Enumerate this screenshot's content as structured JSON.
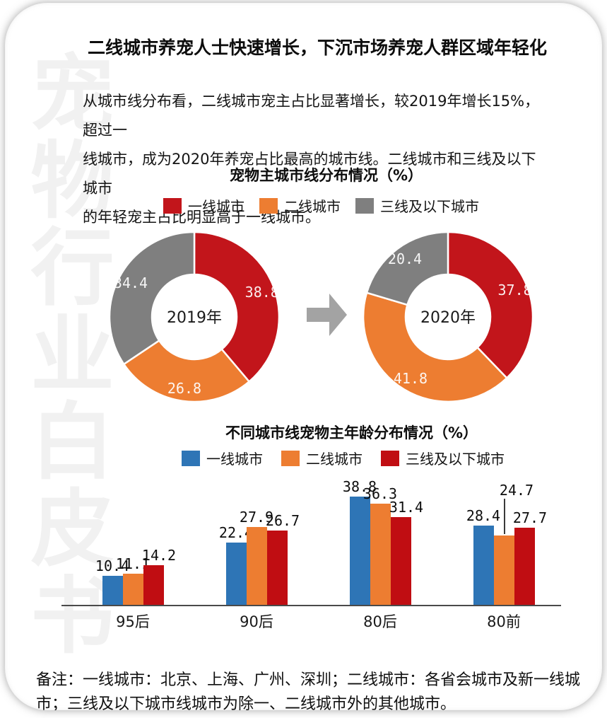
{
  "watermark": "宠物行业白皮书",
  "title": "二线城市养宠人士快速增长，下沉市场养宠人群区域年轻化",
  "paragraph": {
    "lines": [
      "从城市线分布看，二线城市宠主占比显著增长，较2019年增长15%，超过一",
      "线城市，成为2020年养宠占比最高的城市线。二线城市和三线及以下城市",
      "的年轻宠主占比明显高于一线城市。"
    ]
  },
  "colors": {
    "arrow": "#a3a3a3",
    "watermark": "#f1f1f1",
    "axis": "#4a4a4a",
    "slice_label": "#ffffff"
  },
  "chart_data": [
    {
      "type": "pie",
      "title": "宠物主城市线分布情况（%）",
      "legend": [
        {
          "label": "一线城市",
          "color": "#c2151b"
        },
        {
          "label": "二线城市",
          "color": "#ed7d31"
        },
        {
          "label": "三线及以下城市",
          "color": "#7f7f7f"
        }
      ],
      "donuts": [
        {
          "center_label": "2019年",
          "values": [
            38.8,
            26.8,
            34.4
          ]
        },
        {
          "center_label": "2020年",
          "values": [
            37.8,
            41.8,
            20.4
          ]
        }
      ],
      "unit": "%",
      "layout": {
        "legend_position": "top",
        "label_inside": true
      }
    },
    {
      "type": "bar",
      "title": "不同城市线宠物主年龄分布情况（%）",
      "legend": [
        {
          "label": "一线城市",
          "color": "#2e75b6"
        },
        {
          "label": "二线城市",
          "color": "#ed7d31"
        },
        {
          "label": "三线及以下城市",
          "color": "#c00d12"
        }
      ],
      "categories": [
        "95后",
        "90后",
        "80后",
        "80前"
      ],
      "series": [
        {
          "name": "一线城市",
          "color": "#2e75b6",
          "values": [
            10.4,
            22.4,
            38.8,
            28.4
          ]
        },
        {
          "name": "二线城市",
          "color": "#ed7d31",
          "values": [
            11.1,
            27.9,
            36.3,
            24.7
          ]
        },
        {
          "name": "三线及以下城市",
          "color": "#c00d12",
          "values": [
            14.2,
            26.7,
            31.4,
            27.7
          ]
        }
      ],
      "callout": {
        "category_index": 3,
        "series_index": 1
      },
      "unit": "%",
      "layout": {
        "grid": false,
        "value_labels": true,
        "legend_position": "top"
      }
    }
  ],
  "footnote": {
    "lines": [
      "备注：一线城市：北京、上海、广州、深圳；二线城市：各省会城市及新一线城",
      "市；三线及以下城市线城市为除一、二线城市外的其他城市。"
    ]
  }
}
